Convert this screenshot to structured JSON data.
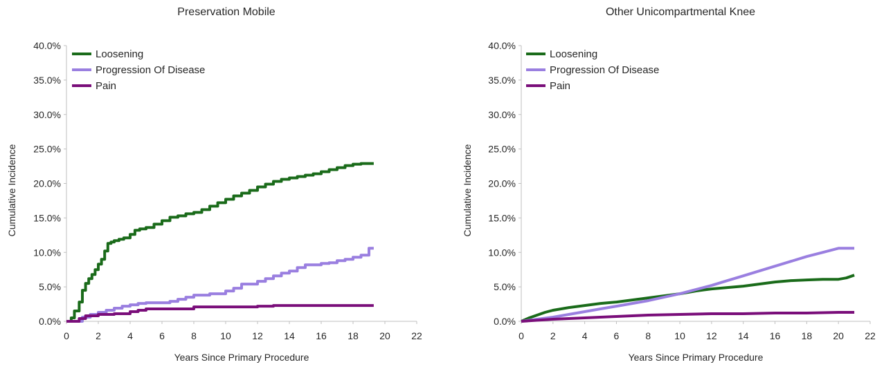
{
  "chart_data": [
    {
      "type": "line",
      "title": "Preservation Mobile",
      "xlabel": "Years Since Primary Procedure",
      "ylabel": "Cumulative Incidence",
      "xlim": [
        0,
        22
      ],
      "ylim": [
        0,
        40
      ],
      "x_ticks": [
        0,
        2,
        4,
        6,
        8,
        10,
        12,
        14,
        16,
        18,
        20,
        22
      ],
      "x_tick_labels": [
        "0",
        "2",
        "4",
        "6",
        "8",
        "10",
        "12",
        "14",
        "16",
        "18",
        "20",
        "22"
      ],
      "y_ticks": [
        0,
        5,
        10,
        15,
        20,
        25,
        30,
        35,
        40
      ],
      "y_tick_labels": [
        "0.0%",
        "5.0%",
        "10.0%",
        "15.0%",
        "20.0%",
        "25.0%",
        "30.0%",
        "35.0%",
        "40.0%"
      ],
      "grid": false,
      "legend_position": "top-left",
      "step": true,
      "series": [
        {
          "name": "Loosening",
          "color": "#1a6b1a",
          "x": [
            0,
            0.3,
            0.5,
            0.8,
            1.0,
            1.2,
            1.4,
            1.6,
            1.8,
            2.0,
            2.2,
            2.4,
            2.6,
            2.8,
            3.0,
            3.3,
            3.6,
            4.0,
            4.3,
            4.6,
            5.0,
            5.5,
            6.0,
            6.5,
            7.0,
            7.5,
            8.0,
            8.5,
            9.0,
            9.5,
            10.0,
            10.5,
            11.0,
            11.5,
            12.0,
            12.5,
            13.0,
            13.5,
            14.0,
            14.5,
            15.0,
            15.5,
            16.0,
            16.5,
            17.0,
            17.5,
            18.0,
            18.5,
            19.3
          ],
          "y": [
            0,
            0.5,
            1.5,
            2.8,
            4.5,
            5.5,
            6.2,
            6.8,
            7.5,
            8.3,
            9.0,
            10.2,
            11.3,
            11.5,
            11.7,
            11.9,
            12.1,
            12.6,
            13.2,
            13.4,
            13.6,
            14.1,
            14.6,
            15.1,
            15.3,
            15.6,
            15.8,
            16.2,
            16.7,
            17.2,
            17.7,
            18.2,
            18.6,
            19.0,
            19.5,
            19.9,
            20.3,
            20.6,
            20.8,
            21.0,
            21.2,
            21.4,
            21.7,
            22.0,
            22.3,
            22.6,
            22.8,
            22.9,
            22.9
          ]
        },
        {
          "name": "Progression Of Disease",
          "color": "#9a7fe0",
          "x": [
            0,
            1.0,
            1.5,
            2.0,
            2.5,
            3.0,
            3.5,
            4.0,
            4.5,
            5.0,
            6.0,
            6.5,
            7.0,
            7.5,
            8.0,
            9.0,
            10.0,
            10.5,
            11.0,
            12.0,
            12.5,
            13.0,
            13.5,
            14.0,
            14.5,
            15.0,
            16.0,
            16.5,
            17.0,
            17.5,
            18.0,
            18.5,
            19.0,
            19.3
          ],
          "y": [
            0,
            0.6,
            1.0,
            1.3,
            1.6,
            1.9,
            2.2,
            2.4,
            2.6,
            2.7,
            2.7,
            2.9,
            3.2,
            3.5,
            3.8,
            4.0,
            4.4,
            4.8,
            5.4,
            5.8,
            6.2,
            6.6,
            7.0,
            7.3,
            7.8,
            8.2,
            8.4,
            8.5,
            8.8,
            9.0,
            9.3,
            9.6,
            10.6,
            10.6
          ]
        },
        {
          "name": "Pain",
          "color": "#7a0e7a",
          "x": [
            0,
            0.8,
            1.2,
            2.0,
            3.0,
            4.0,
            4.5,
            5.0,
            6.0,
            8.0,
            10.0,
            12.0,
            13.0,
            14.0,
            16.0,
            19.3
          ],
          "y": [
            0,
            0.4,
            0.8,
            1.0,
            1.1,
            1.4,
            1.6,
            1.8,
            1.8,
            2.1,
            2.1,
            2.2,
            2.3,
            2.3,
            2.3,
            2.3
          ]
        }
      ]
    },
    {
      "type": "line",
      "title": "Other Unicompartmental Knee",
      "xlabel": "Years Since Primary Procedure",
      "ylabel": "Cumulative Incidence",
      "xlim": [
        0,
        22
      ],
      "ylim": [
        0,
        40
      ],
      "x_ticks": [
        0,
        2,
        4,
        6,
        8,
        10,
        12,
        14,
        16,
        18,
        20,
        22
      ],
      "x_tick_labels": [
        "0",
        "2",
        "4",
        "6",
        "8",
        "10",
        "12",
        "14",
        "16",
        "18",
        "20",
        "22"
      ],
      "y_ticks": [
        0,
        5,
        10,
        15,
        20,
        25,
        30,
        35,
        40
      ],
      "y_tick_labels": [
        "0.0%",
        "5.0%",
        "10.0%",
        "15.0%",
        "20.0%",
        "25.0%",
        "30.0%",
        "35.0%",
        "40.0%"
      ],
      "grid": false,
      "legend_position": "top-left",
      "step": false,
      "series": [
        {
          "name": "Loosening",
          "color": "#1a6b1a",
          "x": [
            0,
            0.5,
            1,
            1.5,
            2,
            3,
            4,
            5,
            6,
            7,
            8,
            9,
            10,
            11,
            12,
            13,
            14,
            15,
            16,
            17,
            18,
            19,
            20,
            20.5,
            21
          ],
          "y": [
            0,
            0.5,
            0.9,
            1.3,
            1.6,
            2.0,
            2.3,
            2.6,
            2.8,
            3.1,
            3.4,
            3.7,
            4.0,
            4.4,
            4.7,
            4.9,
            5.1,
            5.4,
            5.7,
            5.9,
            6.0,
            6.1,
            6.1,
            6.3,
            6.7
          ]
        },
        {
          "name": "Progression Of Disease",
          "color": "#9a7fe0",
          "x": [
            0,
            1,
            2,
            3,
            4,
            5,
            6,
            7,
            8,
            9,
            10,
            11,
            12,
            13,
            14,
            15,
            16,
            17,
            18,
            19,
            20,
            21
          ],
          "y": [
            0,
            0.3,
            0.6,
            1.0,
            1.4,
            1.8,
            2.2,
            2.6,
            3.0,
            3.5,
            4.0,
            4.6,
            5.2,
            5.9,
            6.6,
            7.3,
            8.0,
            8.7,
            9.4,
            10.0,
            10.6,
            10.6
          ]
        },
        {
          "name": "Pain",
          "color": "#7a0e7a",
          "x": [
            0,
            2,
            4,
            6,
            8,
            10,
            12,
            14,
            16,
            18,
            20,
            21
          ],
          "y": [
            0,
            0.3,
            0.5,
            0.7,
            0.9,
            1.0,
            1.1,
            1.1,
            1.2,
            1.2,
            1.3,
            1.3
          ]
        }
      ]
    }
  ]
}
